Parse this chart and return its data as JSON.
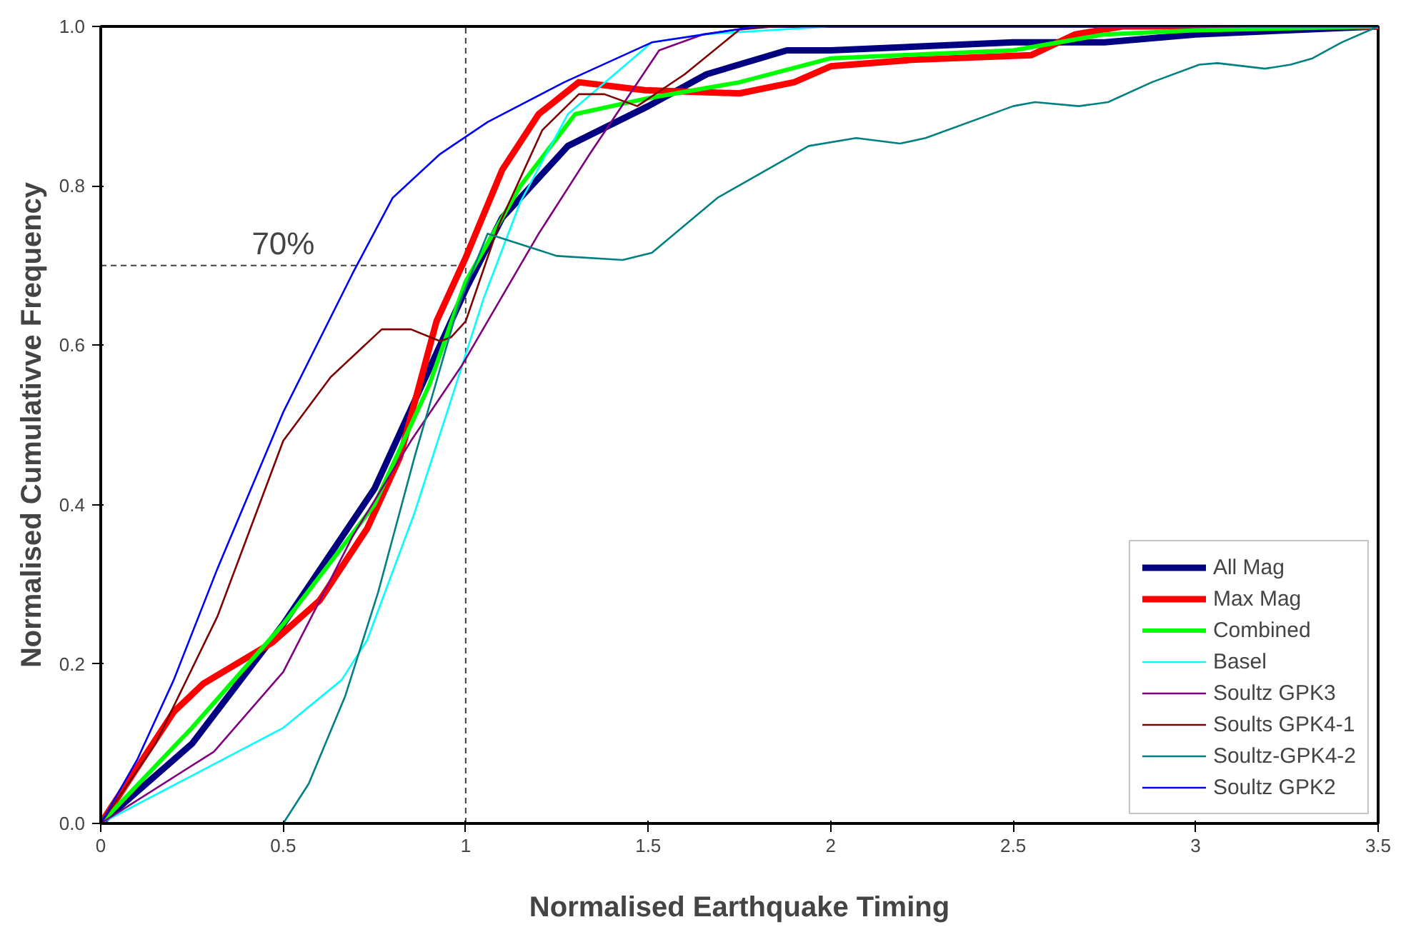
{
  "chart_data": {
    "type": "line",
    "xlabel": "Normalised Earthquake Timing",
    "ylabel": "Normalised Cumulativve Frequency",
    "xlim": [
      0,
      3.5
    ],
    "ylim": [
      0,
      1
    ],
    "xticks": [
      0,
      0.5,
      1,
      1.5,
      2,
      2.5,
      3,
      3.5
    ],
    "yticks": [
      {
        "value": 0,
        "label": "0.0"
      },
      {
        "value": 0.2,
        "label": "0.2"
      },
      {
        "value": 0.4,
        "label": "0.4"
      },
      {
        "value": 0.6,
        "label": "0.6"
      },
      {
        "value": 0.8,
        "label": "0.8"
      },
      {
        "value": 1,
        "label": "1.0"
      }
    ],
    "grid": false,
    "legend": "bottom right",
    "marker": "none",
    "line_style": "solid",
    "ref_lines": [
      {
        "axis": "x",
        "value": 1,
        "line_style": "dashed",
        "color": "#404040"
      },
      {
        "axis": "y",
        "value": 0.7,
        "label": "70%",
        "line_style": "dashed",
        "color": "#404040"
      }
    ],
    "series": [
      {
        "name": "All Mag",
        "color": "#000080",
        "x": [
          0,
          0.25,
          0.5,
          0.75,
          1.0,
          1.1,
          1.28,
          1.5,
          1.66,
          1.88,
          2.0,
          2.5,
          2.75,
          3.0,
          3.5
        ],
        "values": [
          0,
          0.1,
          0.25,
          0.42,
          0.67,
          0.76,
          0.85,
          0.9,
          0.94,
          0.97,
          0.97,
          0.98,
          0.98,
          0.99,
          1.0
        ]
      },
      {
        "name": "Max Mag",
        "color": "#ff0000",
        "x": [
          0,
          0.1,
          0.2,
          0.28,
          0.47,
          0.6,
          0.73,
          0.82,
          0.92,
          1.0,
          1.1,
          1.2,
          1.31,
          1.49,
          1.75,
          1.9,
          2.0,
          2.22,
          2.55,
          2.67,
          2.8,
          3.0,
          3.5
        ],
        "values": [
          0,
          0.07,
          0.14,
          0.175,
          0.227,
          0.28,
          0.37,
          0.46,
          0.63,
          0.71,
          0.82,
          0.89,
          0.93,
          0.92,
          0.916,
          0.93,
          0.95,
          0.958,
          0.964,
          0.99,
          1.0,
          1.0,
          1.0
        ]
      },
      {
        "name": "Combined",
        "color": "#00ff00",
        "x": [
          0,
          0.25,
          0.5,
          0.75,
          0.9,
          1.0,
          1.15,
          1.3,
          1.5,
          1.75,
          2.0,
          2.25,
          2.5,
          2.75,
          3.0,
          3.5
        ],
        "values": [
          0,
          0.12,
          0.25,
          0.4,
          0.55,
          0.68,
          0.8,
          0.89,
          0.91,
          0.93,
          0.96,
          0.965,
          0.97,
          0.99,
          0.995,
          1.0
        ]
      },
      {
        "name": "Basel",
        "color": "#00ffff",
        "x": [
          0,
          0.25,
          0.5,
          0.66,
          0.73,
          0.86,
          0.98,
          1.05,
          1.15,
          1.28,
          1.51,
          1.65,
          2.0,
          3.5
        ],
        "values": [
          0,
          0.06,
          0.12,
          0.18,
          0.23,
          0.39,
          0.56,
          0.66,
          0.78,
          0.89,
          0.98,
          0.99,
          1.0,
          1.0
        ]
      },
      {
        "name": "Soultz GPK3",
        "color": "#800080",
        "x": [
          0,
          0.31,
          0.5,
          0.69,
          0.85,
          0.99,
          1.06,
          1.2,
          1.34,
          1.53,
          1.65,
          1.8,
          3.5
        ],
        "values": [
          0,
          0.09,
          0.19,
          0.36,
          0.48,
          0.575,
          0.63,
          0.74,
          0.84,
          0.97,
          0.99,
          1.0,
          1.0
        ]
      },
      {
        "name": "Soults GPK4-1",
        "color": "#800000",
        "x": [
          0,
          0.15,
          0.32,
          0.5,
          0.63,
          0.77,
          0.85,
          0.93,
          0.96,
          1.0,
          1.09,
          1.21,
          1.31,
          1.38,
          1.47,
          1.6,
          1.75,
          1.85,
          3.5
        ],
        "values": [
          0,
          0.1,
          0.26,
          0.48,
          0.56,
          0.62,
          0.62,
          0.605,
          0.61,
          0.63,
          0.75,
          0.87,
          0.915,
          0.915,
          0.9,
          0.94,
          0.996,
          1.0,
          1.0
        ]
      },
      {
        "name": "Soultz-GPK4-2",
        "color": "#008080",
        "x": [
          0.5,
          0.57,
          0.67,
          0.76,
          0.86,
          0.98,
          1.06,
          1.25,
          1.43,
          1.51,
          1.69,
          1.94,
          2.07,
          2.19,
          2.26,
          2.5,
          2.56,
          2.68,
          2.76,
          2.88,
          3.01,
          3.06,
          3.19,
          3.26,
          3.32,
          3.4,
          3.5
        ],
        "values": [
          0,
          0.05,
          0.16,
          0.29,
          0.46,
          0.65,
          0.74,
          0.712,
          0.707,
          0.716,
          0.785,
          0.85,
          0.86,
          0.853,
          0.86,
          0.9,
          0.905,
          0.9,
          0.905,
          0.93,
          0.952,
          0.954,
          0.947,
          0.952,
          0.96,
          0.98,
          1.0
        ]
      },
      {
        "name": "Soultz GPK2",
        "color": "#0000ff",
        "x": [
          0,
          0.1,
          0.2,
          0.32,
          0.5,
          0.69,
          0.8,
          0.93,
          1.06,
          1.27,
          1.51,
          1.8,
          3.5
        ],
        "values": [
          0,
          0.08,
          0.18,
          0.32,
          0.516,
          0.69,
          0.785,
          0.84,
          0.88,
          0.93,
          0.98,
          1.0,
          1.0
        ]
      }
    ]
  }
}
